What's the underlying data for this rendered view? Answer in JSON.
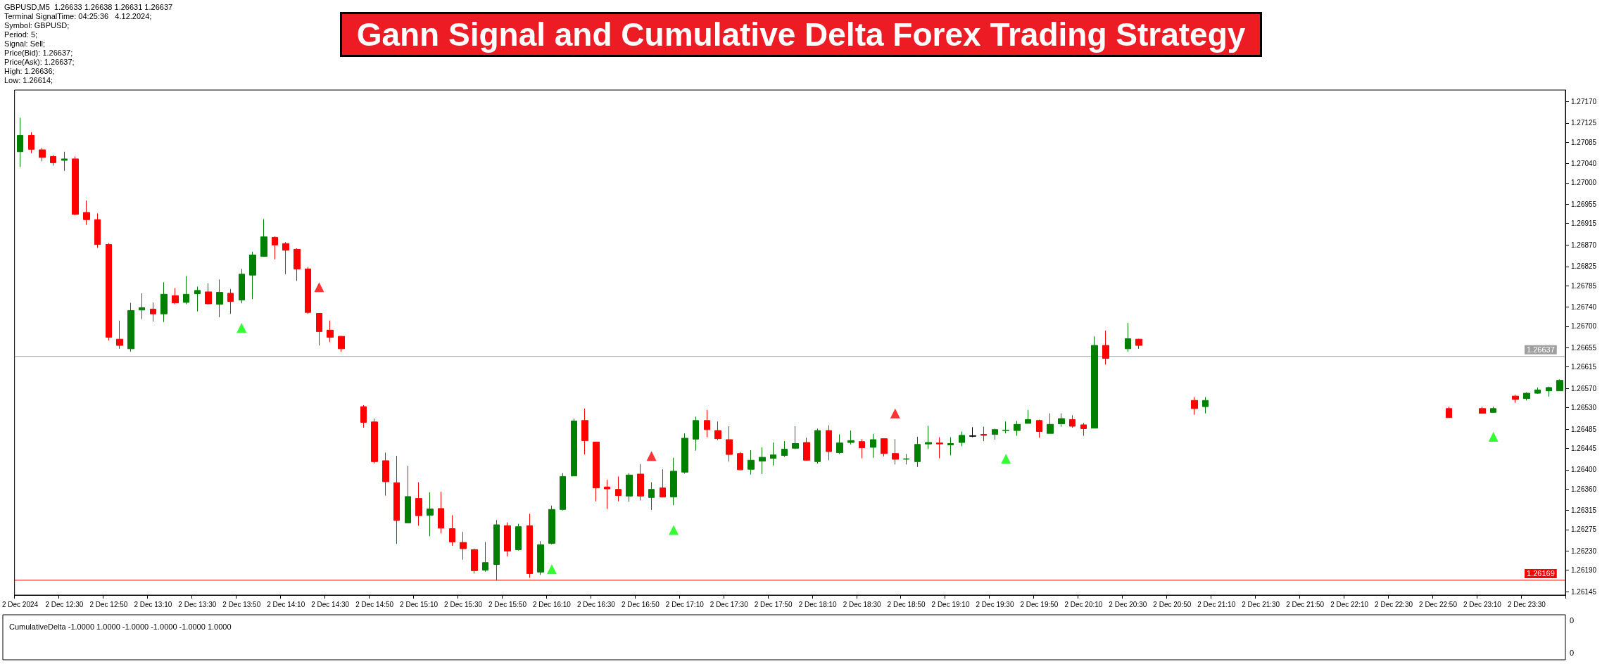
{
  "chart_data": [
    {
      "type": "candlestick",
      "title": "Gann Signal and Cumulative Delta Forex Trading Strategy",
      "annotations": [
        "GBPUSD,M5  1.26633 1.26638 1.26631 1.26637",
        "Terminal SignalTime: 04:25:36   4.12.2024;",
        "Symbol: GBPUSD;",
        "Period: 5;",
        "Signal: Sell;",
        "Price(Bid): 1.26637;",
        "Price(Ask): 1.26637;",
        "High: 1.26636;",
        "Low: 1.26614;"
      ],
      "categories": [
        "2 Dec 2024",
        null,
        null,
        null,
        "2 Dec 12:30",
        null,
        null,
        null,
        "2 Dec 12:50",
        null,
        null,
        null,
        "2 Dec 13:10",
        null,
        null,
        null,
        "2 Dec 13:30",
        null,
        null,
        null,
        "2 Dec 13:50",
        null,
        null,
        null,
        "2 Dec 14:10",
        null,
        null,
        null,
        "2 Dec 14:30",
        null,
        null,
        null,
        "2 Dec 14:50",
        null,
        null,
        null,
        "2 Dec 15:10",
        null,
        null,
        null,
        "2 Dec 15:30",
        null,
        null,
        null,
        "2 Dec 15:50",
        null,
        null,
        null,
        "2 Dec 16:10",
        null,
        null,
        null,
        "2 Dec 16:30",
        null,
        null,
        null,
        "2 Dec 16:50",
        null,
        null,
        null,
        "2 Dec 17:10",
        null,
        null,
        null,
        "2 Dec 17:30",
        null,
        null,
        null,
        "2 Dec 17:50",
        null,
        null,
        null,
        "2 Dec 18:10",
        null,
        null,
        null,
        "2 Dec 18:30",
        null,
        null,
        null,
        "2 Dec 18:50",
        null,
        null,
        null,
        "2 Dec 19:10",
        null,
        null,
        null,
        "2 Dec 19:30",
        null,
        null,
        null,
        "2 Dec 19:50",
        null,
        null,
        null,
        "2 Dec 20:10",
        null,
        null,
        null,
        "2 Dec 20:30",
        null,
        null,
        null,
        "2 Dec 20:50",
        null,
        null,
        null,
        "2 Dec 21:10",
        null,
        null,
        null,
        "2 Dec 21:30",
        null,
        null,
        null,
        "2 Dec 21:50",
        null,
        null,
        null,
        "2 Dec 22:10",
        null,
        null,
        null,
        "2 Dec 22:30",
        null,
        null,
        null,
        "2 Dec 22:50",
        null,
        null,
        null,
        "2 Dec 23:10",
        null,
        null,
        null,
        "2 Dec 23:30",
        null,
        null,
        null
      ],
      "ohlc": [
        [
          1.27065,
          1.27136,
          1.27033,
          1.27099
        ],
        [
          1.27099,
          1.27106,
          1.27062,
          1.2707
        ],
        [
          1.27069,
          1.27073,
          1.27045,
          1.27053
        ],
        [
          1.27055,
          1.27058,
          1.27036,
          1.27042
        ],
        [
          1.27047,
          1.27065,
          1.27025,
          1.2705
        ],
        [
          1.2705,
          1.27055,
          1.26932,
          1.26934
        ],
        [
          1.26938,
          1.26963,
          1.26912,
          1.26923
        ],
        [
          1.26923,
          1.26936,
          1.26864,
          1.26871
        ],
        [
          1.26871,
          1.26874,
          1.2667,
          1.26677
        ],
        [
          1.26673,
          1.26712,
          1.26653,
          1.2666
        ],
        [
          1.26653,
          1.26749,
          1.26647,
          1.26733
        ],
        [
          1.26734,
          1.26769,
          1.26715,
          1.26739
        ],
        [
          1.26736,
          1.2675,
          1.2671,
          1.26726
        ],
        [
          1.26726,
          1.26792,
          1.26709,
          1.26767
        ],
        [
          1.26764,
          1.2678,
          1.26746,
          1.26749
        ],
        [
          1.2675,
          1.26805,
          1.26746,
          1.26767
        ],
        [
          1.26768,
          1.26783,
          1.26731,
          1.26775
        ],
        [
          1.26772,
          1.2679,
          1.26746,
          1.26747
        ],
        [
          1.26746,
          1.26798,
          1.26719,
          1.26771
        ],
        [
          1.26769,
          1.26778,
          1.26726,
          1.26752
        ],
        [
          1.26755,
          1.2682,
          1.26748,
          1.26809
        ],
        [
          1.26807,
          1.26856,
          1.26757,
          1.26849
        ],
        [
          1.26846,
          1.26924,
          1.26846,
          1.26887
        ],
        [
          1.26886,
          1.26888,
          1.2684,
          1.2687
        ],
        [
          1.26873,
          1.26876,
          1.26809,
          1.26859
        ],
        [
          1.26861,
          1.26863,
          1.26795,
          1.2682
        ],
        [
          1.2682,
          1.26824,
          1.26726,
          1.26729
        ],
        [
          1.26727,
          1.26727,
          1.2666,
          1.26689
        ],
        [
          1.26692,
          1.26712,
          1.26667,
          1.26677
        ],
        [
          1.26679,
          1.2668,
          1.26647,
          1.26653
        ],
        null,
        [
          1.26532,
          1.26535,
          1.26488,
          1.26499
        ],
        [
          1.265,
          1.26507,
          1.26413,
          1.26417
        ],
        [
          1.26419,
          1.26436,
          1.26346,
          1.26375
        ],
        [
          1.26373,
          1.26429,
          1.26245,
          1.26294
        ],
        [
          1.26289,
          1.26408,
          1.26289,
          1.26344
        ],
        [
          1.2634,
          1.26374,
          1.26283,
          1.26304
        ],
        [
          1.26305,
          1.26353,
          1.26261,
          1.26318
        ],
        [
          1.26319,
          1.26354,
          1.26267,
          1.26278
        ],
        [
          1.26277,
          1.26305,
          1.26241,
          1.26249
        ],
        [
          1.26248,
          1.2627,
          1.26212,
          1.26235
        ],
        [
          1.26233,
          1.26235,
          1.26183,
          1.26189
        ],
        [
          1.2619,
          1.26249,
          1.26187,
          1.26206
        ],
        [
          1.26202,
          1.26295,
          1.26169,
          1.26285
        ],
        [
          1.26283,
          1.2629,
          1.26219,
          1.2623
        ],
        [
          1.26233,
          1.26287,
          1.26231,
          1.26281
        ],
        [
          1.26283,
          1.26308,
          1.26174,
          1.26183
        ],
        [
          1.26186,
          1.26251,
          1.2618,
          1.26243
        ],
        [
          1.26246,
          1.26325,
          1.26244,
          1.26317
        ],
        [
          1.26317,
          1.26393,
          1.26315,
          1.26386
        ],
        [
          1.26387,
          1.26507,
          1.26387,
          1.26502
        ],
        [
          1.26503,
          1.26528,
          1.26432,
          1.26461
        ],
        [
          1.26458,
          1.26458,
          1.26334,
          1.26362
        ],
        [
          1.26364,
          1.26379,
          1.26318,
          1.2636
        ],
        [
          1.26359,
          1.26386,
          1.26334,
          1.26346
        ],
        [
          1.26345,
          1.26393,
          1.26333,
          1.26389
        ],
        [
          1.26391,
          1.26412,
          1.26336,
          1.26345
        ],
        [
          1.26342,
          1.26374,
          1.26316,
          1.26359
        ],
        [
          1.26362,
          1.26401,
          1.26343,
          1.26343
        ],
        [
          1.26343,
          1.26425,
          1.26326,
          1.26397
        ],
        [
          1.26395,
          1.26476,
          1.26392,
          1.26466
        ],
        [
          1.26464,
          1.26511,
          1.2644,
          1.26503
        ],
        [
          1.26503,
          1.26525,
          1.26468,
          1.26484
        ],
        [
          1.26482,
          1.26501,
          1.26462,
          1.26465
        ],
        [
          1.26463,
          1.26491,
          1.26417,
          1.26432
        ],
        [
          1.26434,
          1.26437,
          1.26399,
          1.264
        ],
        [
          1.26401,
          1.26441,
          1.2639,
          1.2642
        ],
        [
          1.26418,
          1.26447,
          1.26391,
          1.26426
        ],
        [
          1.26424,
          1.26457,
          1.26409,
          1.26431
        ],
        [
          1.2643,
          1.2646,
          1.26427,
          1.26443
        ],
        [
          1.26445,
          1.26491,
          1.26443,
          1.26455
        ],
        [
          1.26457,
          1.26467,
          1.26419,
          1.2642
        ],
        [
          1.26417,
          1.26486,
          1.26413,
          1.26482
        ],
        [
          1.26482,
          1.26493,
          1.2642,
          1.26438
        ],
        [
          1.26436,
          1.26474,
          1.26433,
          1.26456
        ],
        [
          1.26457,
          1.26482,
          1.26453,
          1.26461
        ],
        [
          1.26459,
          1.26464,
          1.26424,
          1.26446
        ],
        [
          1.26447,
          1.26475,
          1.26425,
          1.26463
        ],
        [
          1.26465,
          1.26465,
          1.26428,
          1.26434
        ],
        [
          1.26434,
          1.26464,
          1.26411,
          1.26422
        ],
        [
          1.26422,
          1.26433,
          1.26411,
          1.26423
        ],
        [
          1.26417,
          1.26469,
          1.26406,
          1.26453
        ],
        [
          1.26454,
          1.26492,
          1.26444,
          1.26457
        ],
        [
          1.26456,
          1.26468,
          1.26424,
          1.26454
        ],
        [
          1.26452,
          1.26468,
          1.2643,
          1.26455
        ],
        [
          1.26457,
          1.2648,
          1.26449,
          1.26472
        ],
        [
          1.26471,
          1.26489,
          1.26468,
          1.2647
        ],
        [
          1.26474,
          1.2649,
          1.2646,
          1.26472
        ],
        [
          1.26474,
          1.26486,
          1.26463,
          1.26484
        ],
        [
          1.26482,
          1.26501,
          1.26476,
          1.26483
        ],
        [
          1.26482,
          1.26502,
          1.26471,
          1.26495
        ],
        [
          1.26497,
          1.26525,
          1.26497,
          1.26505
        ],
        [
          1.26503,
          1.26505,
          1.26467,
          1.2648
        ],
        [
          1.26476,
          1.26518,
          1.26476,
          1.26495
        ],
        [
          1.26496,
          1.26518,
          1.2649,
          1.26507
        ],
        [
          1.26505,
          1.26514,
          1.26488,
          1.26491
        ],
        [
          1.26494,
          1.26498,
          1.26471,
          1.26486
        ],
        [
          1.26487,
          1.26679,
          1.26487,
          1.2666
        ],
        [
          1.2666,
          1.26691,
          1.2662,
          1.26633
        ],
        null,
        [
          1.26653,
          1.26707,
          1.26647,
          1.26674
        ],
        [
          1.26673,
          1.26674,
          1.26653,
          1.2666
        ],
        null,
        null,
        null,
        null,
        [
          1.26545,
          1.26552,
          1.26515,
          1.26528
        ],
        [
          1.26532,
          1.26552,
          1.26518,
          1.26545
        ],
        null,
        null,
        null,
        null,
        null,
        null,
        null,
        null,
        null,
        null,
        null,
        null,
        null,
        null,
        null,
        null,
        null,
        null,
        null,
        null,
        null,
        [
          1.26528,
          1.26532,
          1.26509,
          1.26509
        ],
        null,
        null,
        [
          1.26528,
          1.26532,
          1.26518,
          1.26518
        ],
        [
          1.2652,
          1.26532,
          1.2652,
          1.26528
        ],
        null,
        [
          1.26554,
          1.26557,
          1.2654,
          1.26547
        ],
        [
          1.26549,
          1.26562,
          1.26545,
          1.2656
        ],
        [
          1.2656,
          1.26572,
          1.26559,
          1.26567
        ],
        [
          1.26565,
          1.26574,
          1.26553,
          1.26572
        ],
        [
          1.26565,
          1.26589,
          1.26565,
          1.26587
        ]
      ],
      "colors": [
        "#008000",
        "#ff0000",
        "#ff0000",
        "#ff0000",
        "#008000",
        "#ff0000",
        "#ff0000",
        "#ff0000",
        "#ff0000",
        "#ff0000",
        "#008000",
        "#008000",
        "#ff0000",
        "#008000",
        "#ff0000",
        "#008000",
        "#008000",
        "#ff0000",
        "#008000",
        "#ff0000",
        "#008000",
        "#008000",
        "#008000",
        "#ff0000",
        "#ff0000",
        "#ff0000",
        "#ff0000",
        "#ff0000",
        "#ff0000",
        "#ff0000",
        null,
        "#ff0000",
        "#ff0000",
        "#ff0000",
        "#ff0000",
        "#008000",
        "#ff0000",
        "#008000",
        "#ff0000",
        "#ff0000",
        "#ff0000",
        "#ff0000",
        "#008000",
        "#008000",
        "#ff0000",
        "#008000",
        "#ff0000",
        "#008000",
        "#008000",
        "#008000",
        "#008000",
        "#ff0000",
        "#ff0000",
        "#ff0000",
        "#ff0000",
        "#008000",
        "#ff0000",
        "#008000",
        "#ff0000",
        "#008000",
        "#008000",
        "#008000",
        "#ff0000",
        "#ff0000",
        "#ff0000",
        "#ff0000",
        "#008000",
        "#008000",
        "#008000",
        "#008000",
        "#008000",
        "#ff0000",
        "#008000",
        "#ff0000",
        "#008000",
        "#008000",
        "#ff0000",
        "#008000",
        "#ff0000",
        "#ff0000",
        "#008000",
        "#008000",
        "#008000",
        "#ff0000",
        "#008000",
        "#008000",
        "#000000",
        "#ff0000",
        "#008000",
        "#008000",
        "#008000",
        "#008000",
        "#ff0000",
        "#008000",
        "#008000",
        "#ff0000",
        "#ff0000",
        "#008000",
        "#ff0000",
        null,
        "#008000",
        "#ff0000",
        null,
        null,
        null,
        null,
        "#ff0000",
        "#008000",
        null,
        null,
        null,
        null,
        null,
        null,
        null,
        null,
        null,
        null,
        null,
        null,
        null,
        null,
        null,
        null,
        null,
        null,
        null,
        null,
        null,
        "#ff0000",
        null,
        null,
        "#ff0000",
        "#008000",
        null,
        "#ff0000",
        "#008000",
        "#008000",
        "#008000",
        "#008000"
      ],
      "series": [
        {
          "type": "scatter",
          "color": "#00ff00",
          "marker": "triangle",
          "values": [
            null,
            null,
            null,
            null,
            null,
            null,
            null,
            null,
            null,
            null,
            null,
            null,
            null,
            null,
            null,
            null,
            null,
            null,
            null,
            null,
            1.26697,
            null,
            null,
            null,
            null,
            null,
            null,
            null,
            null,
            null,
            null,
            null,
            null,
            null,
            null,
            null,
            null,
            null,
            null,
            null,
            null,
            null,
            null,
            null,
            null,
            null,
            null,
            null,
            1.26192,
            null,
            null,
            null,
            null,
            null,
            null,
            null,
            null,
            null,
            null,
            1.26274,
            null,
            null,
            null,
            null,
            null,
            null,
            null,
            null,
            null,
            null,
            null,
            null,
            null,
            null,
            null,
            null,
            null,
            null,
            null,
            null,
            null,
            null,
            null,
            null,
            null,
            null,
            null,
            null,
            null,
            1.26423,
            null,
            null,
            null,
            null,
            null,
            null,
            null,
            null,
            null,
            null,
            null,
            null,
            null,
            null,
            null,
            null,
            null,
            null,
            null,
            null,
            null,
            null,
            null,
            null,
            null,
            null,
            null,
            null,
            null,
            null,
            null,
            null,
            null,
            null,
            null,
            null,
            null,
            null,
            null,
            null,
            null,
            null,
            null,
            1.26469,
            null,
            null,
            null,
            null,
            null,
            null
          ]
        },
        {
          "type": "scatter",
          "color": "#ff0000",
          "marker": "triangle",
          "values": [
            null,
            null,
            null,
            null,
            null,
            null,
            null,
            null,
            null,
            null,
            null,
            null,
            null,
            null,
            null,
            null,
            null,
            null,
            null,
            null,
            null,
            null,
            null,
            null,
            null,
            null,
            null,
            1.26782,
            null,
            null,
            null,
            null,
            null,
            null,
            null,
            null,
            null,
            null,
            null,
            null,
            null,
            null,
            null,
            null,
            null,
            null,
            null,
            null,
            null,
            null,
            null,
            null,
            null,
            null,
            null,
            null,
            null,
            1.26429,
            null,
            null,
            null,
            null,
            null,
            null,
            null,
            null,
            null,
            null,
            null,
            null,
            null,
            null,
            null,
            null,
            null,
            null,
            null,
            null,
            null,
            1.26518,
            null,
            null,
            null,
            null,
            null,
            null,
            null,
            null,
            null,
            null,
            null,
            null,
            null,
            null,
            null,
            null,
            null,
            null,
            null,
            null,
            null,
            null,
            null,
            null,
            null,
            null,
            null,
            null,
            null,
            null,
            null,
            null,
            null,
            null,
            null,
            null,
            null,
            null,
            null,
            null,
            null,
            null,
            null,
            null,
            null,
            null,
            null,
            null,
            null,
            null,
            null,
            null,
            null,
            null,
            null,
            null,
            null,
            null,
            null,
            null
          ]
        }
      ],
      "ref_lines": [
        {
          "axis": "y",
          "value": 1.26637,
          "label": "1.26637",
          "color": "#a0a0a0"
        },
        {
          "axis": "y",
          "value": 1.26169,
          "label": "1.26169",
          "color": "#ff0000"
        }
      ],
      "ylim": [
        1.26138,
        1.27194
      ],
      "yticks": [
        {
          "value": 1.26145,
          "label": "1.26145"
        },
        {
          "value": 1.2619,
          "label": "1.26190"
        },
        {
          "value": 1.2623,
          "label": "1.26230"
        },
        {
          "value": 1.26275,
          "label": "1.26275"
        },
        {
          "value": 1.26315,
          "label": "1.26315"
        },
        {
          "value": 1.2636,
          "label": "1.26360"
        },
        {
          "value": 1.264,
          "label": "1.26400"
        },
        {
          "value": 1.26445,
          "label": "1.26445"
        },
        {
          "value": 1.26485,
          "label": "1.26485"
        },
        {
          "value": 1.2653,
          "label": "1.26530"
        },
        {
          "value": 1.2657,
          "label": "1.26570"
        },
        {
          "value": 1.26615,
          "label": "1.26615"
        },
        {
          "value": 1.26655,
          "label": "1.26655"
        },
        {
          "value": 1.267,
          "label": "1.26700"
        },
        {
          "value": 1.2674,
          "label": "1.26740"
        },
        {
          "value": 1.26785,
          "label": "1.26785"
        },
        {
          "value": 1.26825,
          "label": "1.26825"
        },
        {
          "value": 1.2687,
          "label": "1.26870"
        },
        {
          "value": 1.26915,
          "label": "1.26915"
        },
        {
          "value": 1.26955,
          "label": "1.26955"
        },
        {
          "value": 1.27,
          "label": "1.27000"
        },
        {
          "value": 1.2704,
          "label": "1.27040"
        },
        {
          "value": 1.27085,
          "label": "1.27085"
        },
        {
          "value": 1.27125,
          "label": "1.27125"
        },
        {
          "value": 1.2717,
          "label": "1.27170"
        }
      ]
    },
    {
      "type": "other",
      "title": "CumulativeDelta -1.0000 1.0000 -1.0000 -1.0000 -1.0000 1.0000",
      "annotations": [
        "0",
        "0"
      ]
    }
  ]
}
